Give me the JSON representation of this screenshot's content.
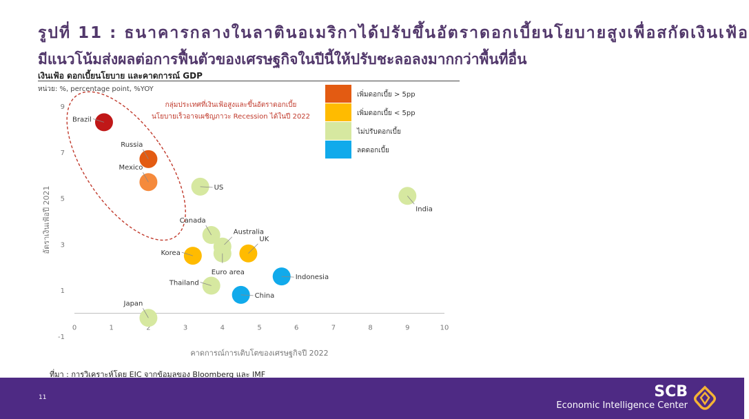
{
  "header": {
    "title_line1": "รูปที่ 11 : ธนาคารกลางในลาตินอเมริกาได้ปรับขึ้นอัตราดอกเบี้ยนโยบายสูงเพื่อสกัดเงินเฟ้อ",
    "title_line2": "มีแนวโน้มส่งผลต่อการฟื้นตัวของเศรษฐกิจในปีนี้ให้ปรับชะลอลงมากกว่าพื้นที่อื่น",
    "subtitle": "เงินเฟ้อ ดอกเบี้ยนโยบาย และคาดการณ์ GDP",
    "unit": "หน่วย: %, percentage point, %YOY"
  },
  "source_note": "ที่มา : การวิเคราะห์โดย EIC จากข้อมูลของ Bloomberg และ IMF",
  "footer": {
    "page_number": "11",
    "brand": "SCB",
    "brand_subtitle": "Economic Intelligence Center",
    "background_color": "#4e2a84"
  },
  "chart_data": {
    "type": "scatter",
    "xlabel": "คาดการณ์การเติบโตของเศรษฐกิจปี 2022",
    "ylabel": "อัตราเงินเฟ้อปี 2021",
    "xlim": [
      0,
      10
    ],
    "ylim": [
      -1,
      9
    ],
    "x_ticks": [
      "0",
      "1",
      "2",
      "3",
      "4",
      "5",
      "6",
      "7",
      "8",
      "9",
      "10"
    ],
    "y_ticks": [
      "-1",
      "1",
      "3",
      "5",
      "7",
      "9"
    ],
    "grid": false,
    "legend_position": "top-right",
    "legend": [
      {
        "key": "hike_big",
        "label": "เพิ่มดอกเบี้ย > 5pp",
        "color": "#e35b12"
      },
      {
        "key": "hike_small",
        "label": "เพิ่มดอกเบี้ย < 5pp",
        "color": "#ffbb00"
      },
      {
        "key": "no_change",
        "label": "ไม่ปรับดอกเบี้ย",
        "color": "#d6e8a0"
      },
      {
        "key": "cut",
        "label": "ลดดอกเบี้ย",
        "color": "#11aaeb"
      }
    ],
    "annotation": {
      "text_line1": "กลุ่มประเทศที่เงินเฟ้อสูงและขึ้นอัตราดอกเบี้ย",
      "text_line2": "นโยบายเร็วอาจเผชิญภาวะ Recession ได้ในปี 2022",
      "color": "#c0392b"
    },
    "points": [
      {
        "name": "Brazil",
        "x": 0.8,
        "y": 8.3,
        "color": "#c01818",
        "label_pos": "left"
      },
      {
        "name": "Russia",
        "x": 2.0,
        "y": 6.7,
        "color": "#e35b12",
        "label_pos": "upleft"
      },
      {
        "name": "Mexico",
        "x": 2.0,
        "y": 5.7,
        "color": "#f58a3c",
        "label_pos": "upleft"
      },
      {
        "name": "US",
        "x": 3.4,
        "y": 5.5,
        "color": "#d6e8a0",
        "label_pos": "right"
      },
      {
        "name": "India",
        "x": 9.0,
        "y": 5.1,
        "color": "#d6e8a0",
        "label_pos": "downright"
      },
      {
        "name": "Canada",
        "x": 3.7,
        "y": 3.4,
        "color": "#d6e8a0",
        "label_pos": "upleft"
      },
      {
        "name": "Australia",
        "x": 4.0,
        "y": 2.9,
        "color": "#d6e8a0",
        "label_pos": "upright"
      },
      {
        "name": "Euro area",
        "x": 4.0,
        "y": 2.6,
        "color": "#d6e8a0",
        "label_pos": "down"
      },
      {
        "name": "UK",
        "x": 4.7,
        "y": 2.6,
        "color": "#ffbb00",
        "label_pos": "upright"
      },
      {
        "name": "Korea",
        "x": 3.2,
        "y": 2.5,
        "color": "#ffbb00",
        "label_pos": "left"
      },
      {
        "name": "Indonesia",
        "x": 5.6,
        "y": 1.6,
        "color": "#11aaeb",
        "label_pos": "right"
      },
      {
        "name": "Thailand",
        "x": 3.7,
        "y": 1.2,
        "color": "#d6e8a0",
        "label_pos": "left"
      },
      {
        "name": "China",
        "x": 4.5,
        "y": 0.8,
        "color": "#11aaeb",
        "label_pos": "right"
      },
      {
        "name": "Japan",
        "x": 2.0,
        "y": -0.2,
        "color": "#d6e8a0",
        "label_pos": "upleft"
      }
    ]
  }
}
